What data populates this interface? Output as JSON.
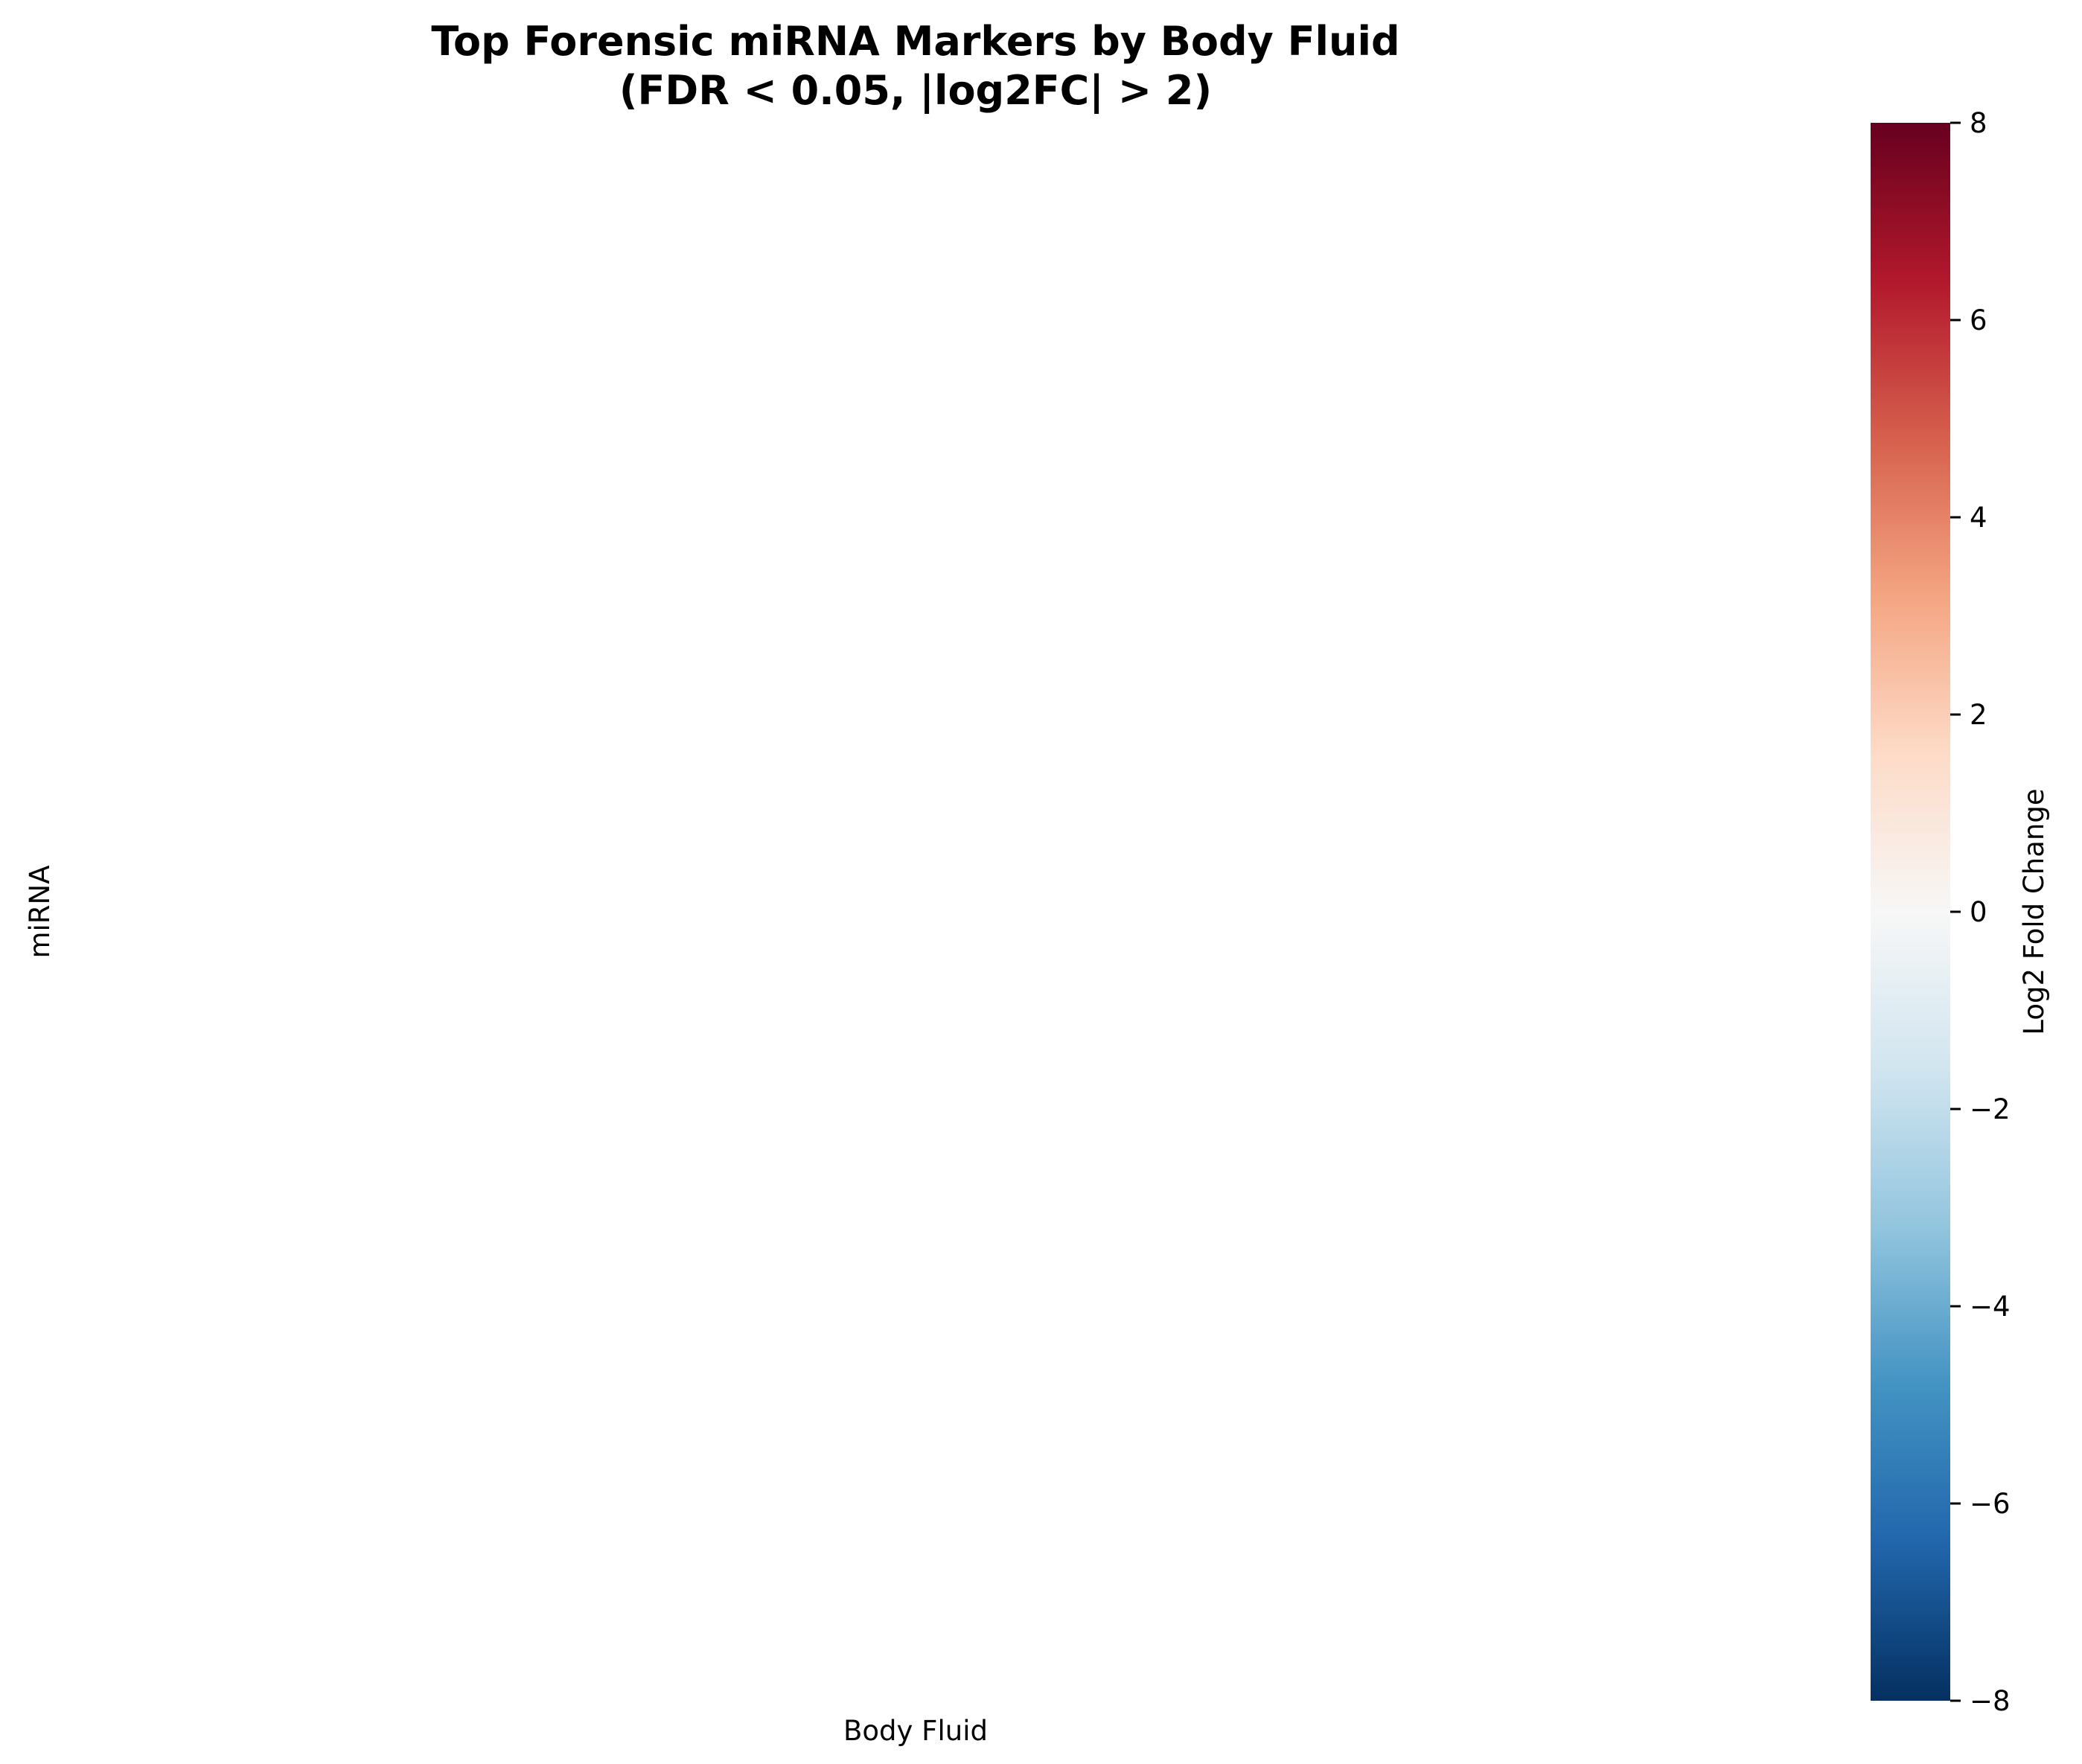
{
  "chart_data": {
    "type": "heatmap",
    "title_lines": [
      "Top Forensic miRNA Markers by Body Fluid",
      "(FDR < 0.05, |log2FC| > 2)"
    ],
    "xlabel": "Body Fluid",
    "ylabel": "miRNA",
    "x_categories": [],
    "y_categories": [],
    "values": [],
    "colorbar": {
      "label": "Log2 Fold Change",
      "range": [
        -8,
        8
      ],
      "ticks": [
        8,
        6,
        4,
        2,
        0,
        -2,
        -4,
        -6,
        -8
      ],
      "tick_labels": [
        "8",
        "6",
        "4",
        "2",
        "0",
        "−2",
        "−4",
        "−6",
        "−8"
      ],
      "colormap": "RdBu_r",
      "colors": [
        "#053061",
        "#2166ac",
        "#4393c3",
        "#92c5de",
        "#d1e5f0",
        "#f7f7f7",
        "#fddbc7",
        "#f4a582",
        "#d6604d",
        "#b2182b",
        "#67001f"
      ]
    },
    "grid": false
  }
}
